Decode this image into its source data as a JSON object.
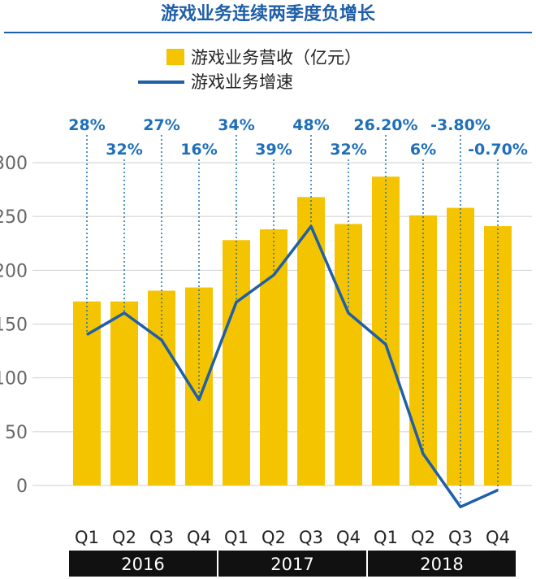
{
  "chart_data": {
    "type": "bar",
    "title": "游戏业务连续两季度负增长",
    "categories": [
      "Q1",
      "Q2",
      "Q3",
      "Q4",
      "Q1",
      "Q2",
      "Q3",
      "Q4",
      "Q1",
      "Q2",
      "Q3",
      "Q4"
    ],
    "years": [
      {
        "label": "2016",
        "span": 4
      },
      {
        "label": "2017",
        "span": 4
      },
      {
        "label": "2018",
        "span": 4
      }
    ],
    "series": [
      {
        "name": "游戏业务营收（亿元）",
        "type": "bar",
        "color": "#f5c400",
        "values": [
          171,
          171,
          181,
          184,
          228,
          238,
          268,
          243,
          287,
          251,
          258,
          241
        ]
      },
      {
        "name": "游戏业务增速",
        "type": "line",
        "color": "#1f5fa8",
        "values": [
          28,
          32,
          27,
          16,
          34,
          39,
          48,
          32,
          26.2,
          6,
          -3.8,
          -0.7
        ],
        "labels": [
          "28%",
          "32%",
          "27%",
          "16%",
          "34%",
          "39%",
          "48%",
          "32%",
          "26.20%",
          "6%",
          "-3.80%",
          "-0.70%"
        ]
      }
    ],
    "ylim": [
      0,
      300
    ],
    "yticks": [
      0,
      50,
      100,
      150,
      200,
      250,
      300
    ],
    "grid": true,
    "legend": "top-center"
  }
}
